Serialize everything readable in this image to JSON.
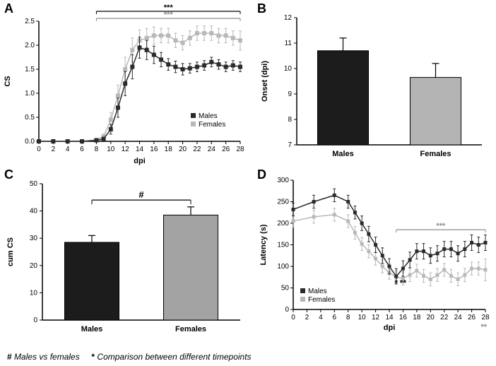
{
  "colors": {
    "bg": "#ffffff",
    "axis": "#000000",
    "males_line": "#2b2b2b",
    "females_line": "#b8b8b8",
    "males_bar": "#1c1c1c",
    "females_bar_B": "#b4b4b4",
    "females_bar_C": "#a3a3a3",
    "errorbar": "#000000",
    "errorbar_f": "#b8b8b8",
    "text": "#000000",
    "sig_star_dark": "#000000",
    "sig_star_grey": "#8c8c8c"
  },
  "footer": {
    "hash": "#",
    "hash_text": "Males vs females",
    "star": "*",
    "star_text": "Comparison between different timepoints"
  },
  "panelA": {
    "type": "line-error",
    "label": "A",
    "xlabel": "dpi",
    "ylabel": "CS",
    "xlim": [
      0,
      28
    ],
    "xtick_step": 2,
    "ylim": [
      0,
      2.5
    ],
    "ytick_step": 0.5,
    "categories": [
      0,
      2,
      4,
      6,
      8,
      9,
      10,
      11,
      12,
      13,
      14,
      15,
      16,
      17,
      18,
      19,
      20,
      21,
      22,
      23,
      24,
      25,
      26,
      27,
      28
    ],
    "males": {
      "y": [
        0,
        0,
        0,
        0,
        0.02,
        0.05,
        0.25,
        0.7,
        1.2,
        1.55,
        1.95,
        1.9,
        1.8,
        1.7,
        1.6,
        1.55,
        1.5,
        1.52,
        1.55,
        1.58,
        1.65,
        1.6,
        1.55,
        1.58,
        1.55
      ],
      "err": [
        0,
        0,
        0,
        0,
        0.02,
        0.03,
        0.1,
        0.2,
        0.25,
        0.25,
        0.22,
        0.2,
        0.18,
        0.15,
        0.12,
        0.12,
        0.12,
        0.1,
        0.1,
        0.1,
        0.1,
        0.1,
        0.1,
        0.1,
        0.1
      ]
    },
    "females": {
      "y": [
        0,
        0,
        0,
        0,
        0.03,
        0.1,
        0.45,
        0.95,
        1.5,
        1.9,
        2.1,
        2.15,
        2.2,
        2.2,
        2.2,
        2.1,
        2.05,
        2.15,
        2.25,
        2.25,
        2.25,
        2.2,
        2.2,
        2.15,
        2.1
      ],
      "err": [
        0,
        0,
        0,
        0,
        0.02,
        0.05,
        0.15,
        0.22,
        0.25,
        0.25,
        0.22,
        0.2,
        0.18,
        0.15,
        0.15,
        0.15,
        0.15,
        0.15,
        0.15,
        0.15,
        0.15,
        0.15,
        0.15,
        0.15,
        0.2
      ]
    },
    "sig_black": {
      "text": "***",
      "from_x": 8,
      "to_x": 28,
      "y": 2.78
    },
    "sig_grey": {
      "text": "***",
      "from_x": 8,
      "to_x": 28,
      "y": 2.62
    },
    "legend": {
      "males": "Males",
      "females": "Females"
    }
  },
  "panelB": {
    "type": "bar-error",
    "label": "B",
    "ylabel": "Onset (dpi)",
    "ylim": [
      7,
      12
    ],
    "ytick_step": 1,
    "categories": [
      "Males",
      "Females"
    ],
    "values": [
      10.7,
      9.65
    ],
    "errors": [
      0.5,
      0.55
    ],
    "bar_colors": [
      "#1c1c1c",
      "#b4b4b4"
    ]
  },
  "panelC": {
    "type": "bar-error",
    "label": "C",
    "ylabel": "cum CS",
    "ylim": [
      0,
      50
    ],
    "ytick_step": 10,
    "categories": [
      "Males",
      "Females"
    ],
    "values": [
      28.5,
      38.5
    ],
    "errors": [
      2.5,
      3.0
    ],
    "bar_colors": [
      "#1c1c1c",
      "#a3a3a3"
    ],
    "sig": {
      "text": "#",
      "from": 0,
      "to": 1,
      "y": 44
    }
  },
  "panelD": {
    "type": "line-error",
    "label": "D",
    "xlabel": "dpi",
    "ylabel": "Latency (s)",
    "xlim": [
      0,
      28
    ],
    "xtick_step": 2,
    "ylim": [
      0,
      300
    ],
    "ytick_step": 50,
    "categories_major": [
      0,
      3,
      6,
      8,
      9,
      10,
      11,
      12,
      13,
      14,
      15,
      16,
      17,
      18,
      19,
      20,
      21,
      22,
      23,
      24,
      25,
      26,
      27,
      28
    ],
    "males": {
      "y": [
        232,
        250,
        265,
        250,
        225,
        200,
        175,
        150,
        125,
        100,
        77,
        95,
        115,
        135,
        135,
        125,
        130,
        140,
        140,
        130,
        140,
        155,
        150,
        155
      ],
      "err": [
        15,
        15,
        15,
        15,
        15,
        17,
        18,
        18,
        18,
        18,
        18,
        18,
        18,
        18,
        18,
        18,
        18,
        18,
        18,
        18,
        18,
        18,
        18,
        18
      ]
    },
    "females": {
      "y": [
        205,
        215,
        220,
        205,
        178,
        152,
        135,
        118,
        100,
        85,
        75,
        72,
        80,
        90,
        78,
        70,
        80,
        92,
        78,
        70,
        80,
        95,
        95,
        92
      ],
      "err": [
        15,
        15,
        15,
        15,
        15,
        15,
        15,
        15,
        15,
        15,
        15,
        15,
        15,
        15,
        15,
        15,
        15,
        15,
        15,
        15,
        15,
        15,
        15,
        25
      ]
    },
    "sig_grey_line": {
      "text": "***",
      "from_x": 15,
      "to_x": 28,
      "y": 185
    },
    "sig_markers_black": [
      {
        "x": 15,
        "text": "*"
      },
      {
        "x": 16,
        "text": "**"
      }
    ],
    "sig_grey_end": {
      "x": 28,
      "text": "**"
    },
    "legend": {
      "males": "Males",
      "females": "Females"
    }
  }
}
